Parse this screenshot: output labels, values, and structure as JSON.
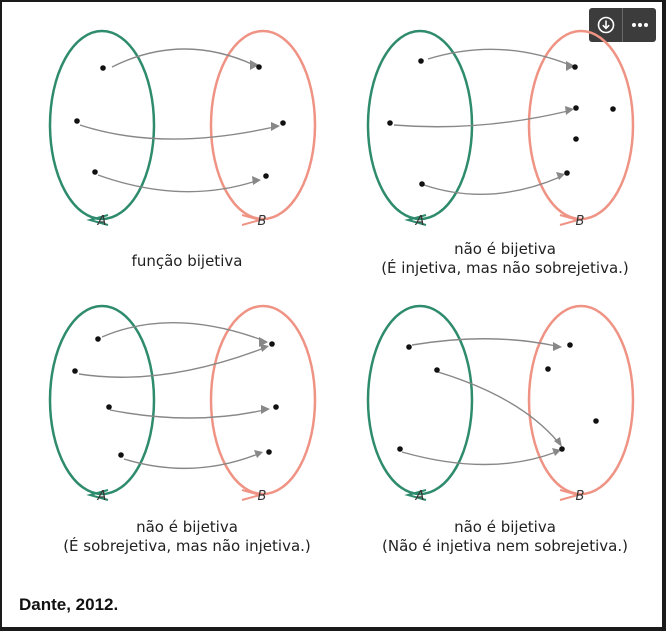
{
  "toolbar": {
    "download_icon": "download-circle-icon",
    "more_icon": "more-horizontal-icon"
  },
  "colors": {
    "set_a": "#2e8b6d",
    "set_b": "#ef9384",
    "arrow": "#888888",
    "dot": "#111111"
  },
  "set_labels": {
    "a": "A",
    "b": "B"
  },
  "diagrams": [
    {
      "caption_1": "função bijetiva",
      "caption_2": "",
      "domain_points": 3,
      "codomain_points": 3,
      "mapping": [
        [
          1,
          1
        ],
        [
          2,
          2
        ],
        [
          3,
          3
        ]
      ]
    },
    {
      "caption_1": "não é bijetiva",
      "caption_2": "(É injetiva, mas não sobrejetiva.)",
      "domain_points": 3,
      "codomain_points": 5,
      "mapping": [
        [
          1,
          1
        ],
        [
          2,
          2
        ],
        [
          3,
          5
        ]
      ]
    },
    {
      "caption_1": "não é bijetiva",
      "caption_2": "(É sobrejetiva, mas não injetiva.)",
      "domain_points": 4,
      "codomain_points": 3,
      "mapping": [
        [
          1,
          1
        ],
        [
          2,
          1
        ],
        [
          3,
          2
        ],
        [
          4,
          3
        ]
      ]
    },
    {
      "caption_1": "não é bijetiva",
      "caption_2": "(Não é injetiva nem sobrejetiva.)",
      "domain_points": 3,
      "codomain_points": 4,
      "mapping": [
        [
          1,
          1
        ],
        [
          2,
          4
        ],
        [
          3,
          4
        ]
      ]
    }
  ],
  "source": "Dante, 2012."
}
